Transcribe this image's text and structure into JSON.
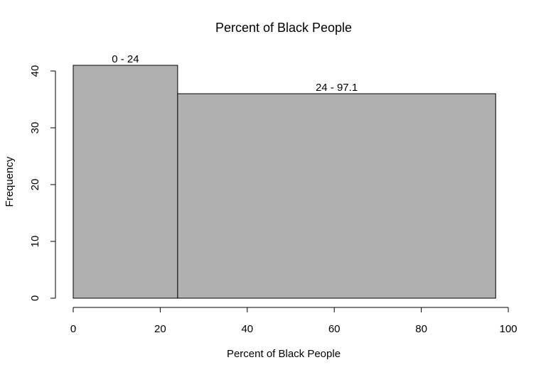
{
  "chart_data": {
    "type": "bar",
    "title": "Percent of Black People",
    "xlabel": "Percent of Black People",
    "ylabel": "Frequency",
    "xlim": [
      0,
      100
    ],
    "ylim": [
      0,
      40
    ],
    "x_ticks": [
      0,
      20,
      40,
      60,
      80,
      100
    ],
    "y_ticks": [
      0,
      10,
      20,
      30,
      40
    ],
    "bins": [
      {
        "x0": 0,
        "x1": 24,
        "value": 41,
        "label": "0 - 24"
      },
      {
        "x0": 24,
        "x1": 97.1,
        "value": 36,
        "label": "24 - 97.1"
      }
    ],
    "grid": false,
    "colors": {
      "bar_fill": "#b0b0b0",
      "bar_stroke": "#000000"
    }
  }
}
